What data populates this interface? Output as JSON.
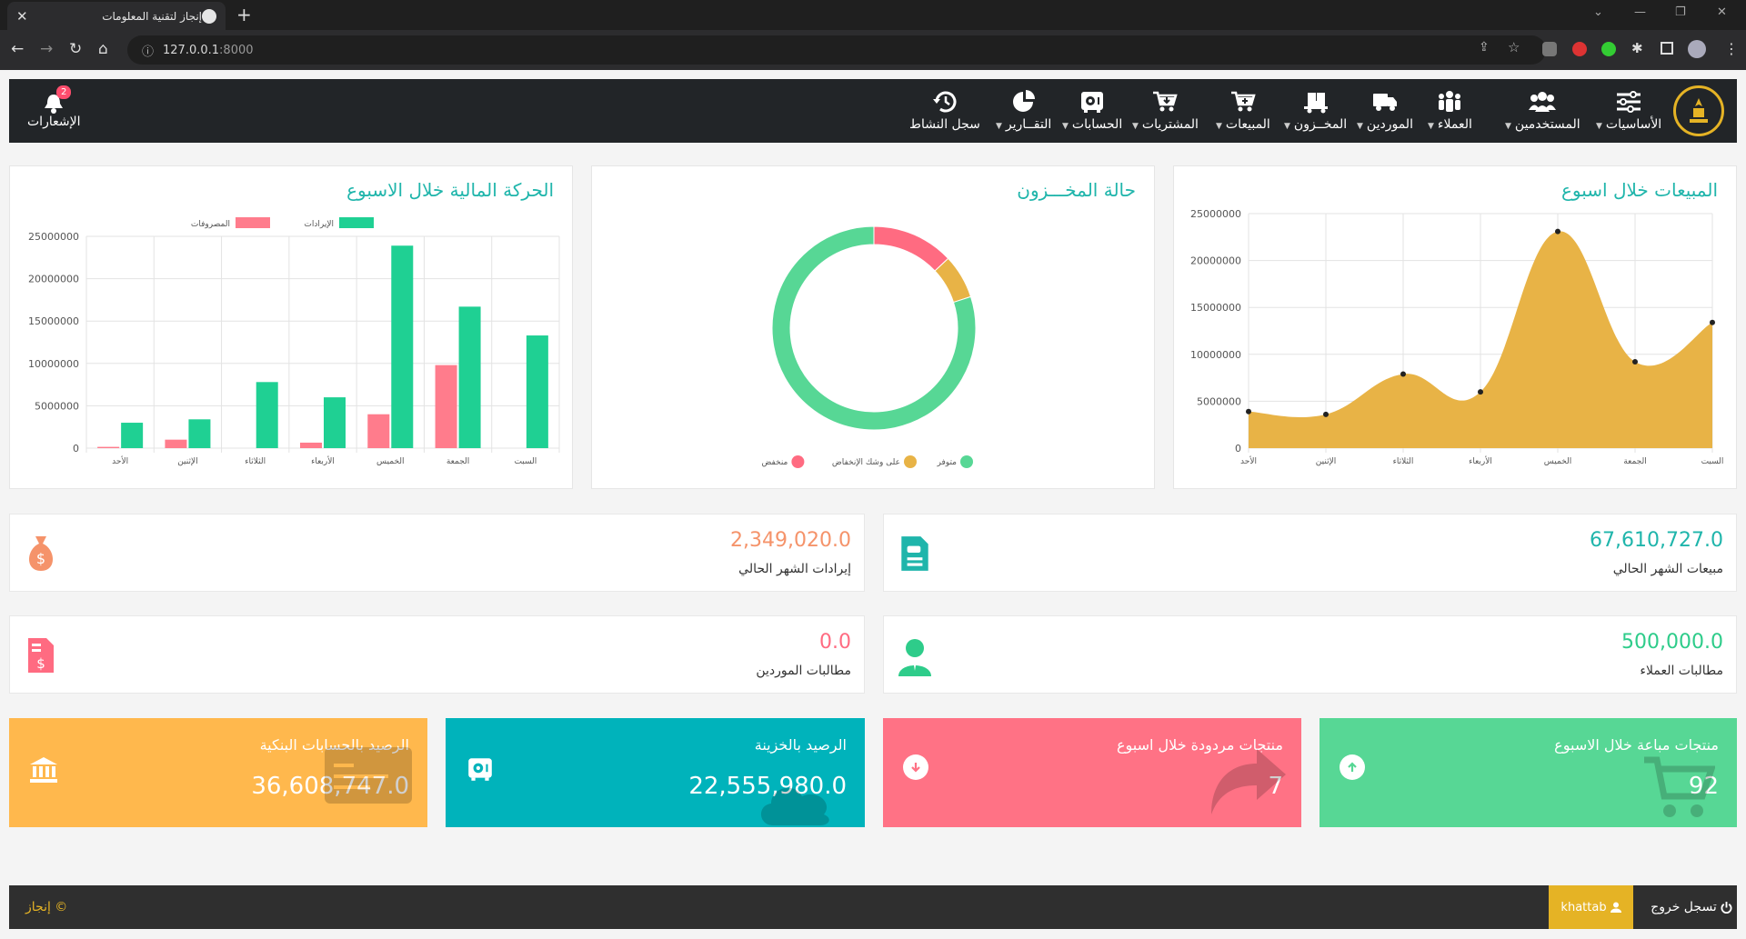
{
  "browser": {
    "tab_title": "إنجاز لتقنية المعلومات",
    "url_host": "127.0.0.1",
    "url_port": ":8000"
  },
  "navbar": {
    "items": [
      {
        "label": "الأساسيات",
        "icon": "sliders-icon"
      },
      {
        "label": "المستخدمين",
        "icon": "users-icon"
      },
      {
        "label": "العملاء",
        "icon": "people-group-icon"
      },
      {
        "label": "الموردين",
        "icon": "truck-icon"
      },
      {
        "label": "المخــزون",
        "icon": "dolly-icon"
      },
      {
        "label": "المبيعات",
        "icon": "cart-plus-icon"
      },
      {
        "label": "المشتريات",
        "icon": "cart-arrow-down-icon"
      },
      {
        "label": "الحسابات",
        "icon": "vault-icon"
      },
      {
        "label": "التقــارير",
        "icon": "pie-chart-icon"
      },
      {
        "label": "سجل النشاط",
        "icon": "history-icon"
      }
    ],
    "notifications_label": "الإشعارات",
    "notifications_count": "2"
  },
  "charts": {
    "sales_title": "المبيعات خلال اسبوع",
    "inventory_title": "حالة المخـــزون",
    "finance_title": "الحركة المالية خلال الاسبوع"
  },
  "chart_data": [
    {
      "type": "area",
      "title": "المبيعات خلال اسبوع",
      "categories": [
        "الأحد",
        "الإثنين",
        "الثلاثاء",
        "الأربعاء",
        "الخميس",
        "الجمعة",
        "السبت"
      ],
      "values": [
        3900000,
        3600000,
        7900000,
        6000000,
        23100000,
        9200000,
        13400000
      ],
      "ylim": [
        0,
        25000000
      ],
      "yticks": [
        "0",
        "5000000",
        "10000000",
        "15000000",
        "20000000",
        "25000000"
      ],
      "color": "#e8b346",
      "grid": true
    },
    {
      "type": "pie",
      "title": "حالة المخـــزون",
      "labels": [
        "متوفر",
        "على وشك الإنخفاض",
        "منخفض"
      ],
      "values": [
        80,
        7,
        13
      ],
      "colors": [
        "#57d795",
        "#e8b346",
        "#ff6b81"
      ],
      "legend": "bottom"
    },
    {
      "type": "bar",
      "title": "الحركة المالية خلال الاسبوع",
      "categories": [
        "الأحد",
        "الإثنين",
        "الثلاثاء",
        "الأربعاء",
        "الخميس",
        "الجمعة",
        "السبت"
      ],
      "series": [
        {
          "name": "المصروفات",
          "values": [
            150000,
            1000000,
            0,
            650000,
            4000000,
            9800000,
            0
          ],
          "color": "#ff7c8c"
        },
        {
          "name": "الإيرادات",
          "values": [
            3000000,
            3400000,
            7800000,
            6000000,
            23900000,
            16700000,
            13300000
          ],
          "color": "#1fd093"
        }
      ],
      "ylim": [
        0,
        25000000
      ],
      "yticks": [
        "0",
        "5000000",
        "10000000",
        "15000000",
        "20000000",
        "25000000"
      ],
      "legend": "top",
      "grid": true
    }
  ],
  "stats": {
    "month_sales": {
      "value": "67,610,727.0",
      "label": "مبيعات الشهر الحالي",
      "color": "#1fb5ab"
    },
    "month_revenue": {
      "value": "2,349,020.0",
      "label": "إيرادات الشهر الحالي",
      "color": "#f5936a"
    },
    "customer_claims": {
      "value": "500,000.0",
      "label": "مطالبات العملاء",
      "color": "#2ecc8a"
    },
    "supplier_claims": {
      "value": "0.0",
      "label": "مطالبات الموردين",
      "color": "#ff6b81"
    }
  },
  "boxes": {
    "bank_balance": {
      "label": "الرصيد بالحسابات البنكية",
      "value": "36,608,747.0",
      "color": "#ffb84d"
    },
    "treasury_balance": {
      "label": "الرصيد بالخزينة",
      "value": "22,555,980.0",
      "color": "#00b3bb"
    },
    "returned_products": {
      "label": "منتجات مردودة خلال اسبوع",
      "value": "7",
      "color": "#ff7285"
    },
    "sold_products": {
      "label": "منتجات مباعة خلال الاسبوع",
      "value": "92",
      "color": "#57d795"
    }
  },
  "footer": {
    "brand": "إنجاز ©",
    "username": "khattab",
    "logout": "تسجل خروج"
  }
}
